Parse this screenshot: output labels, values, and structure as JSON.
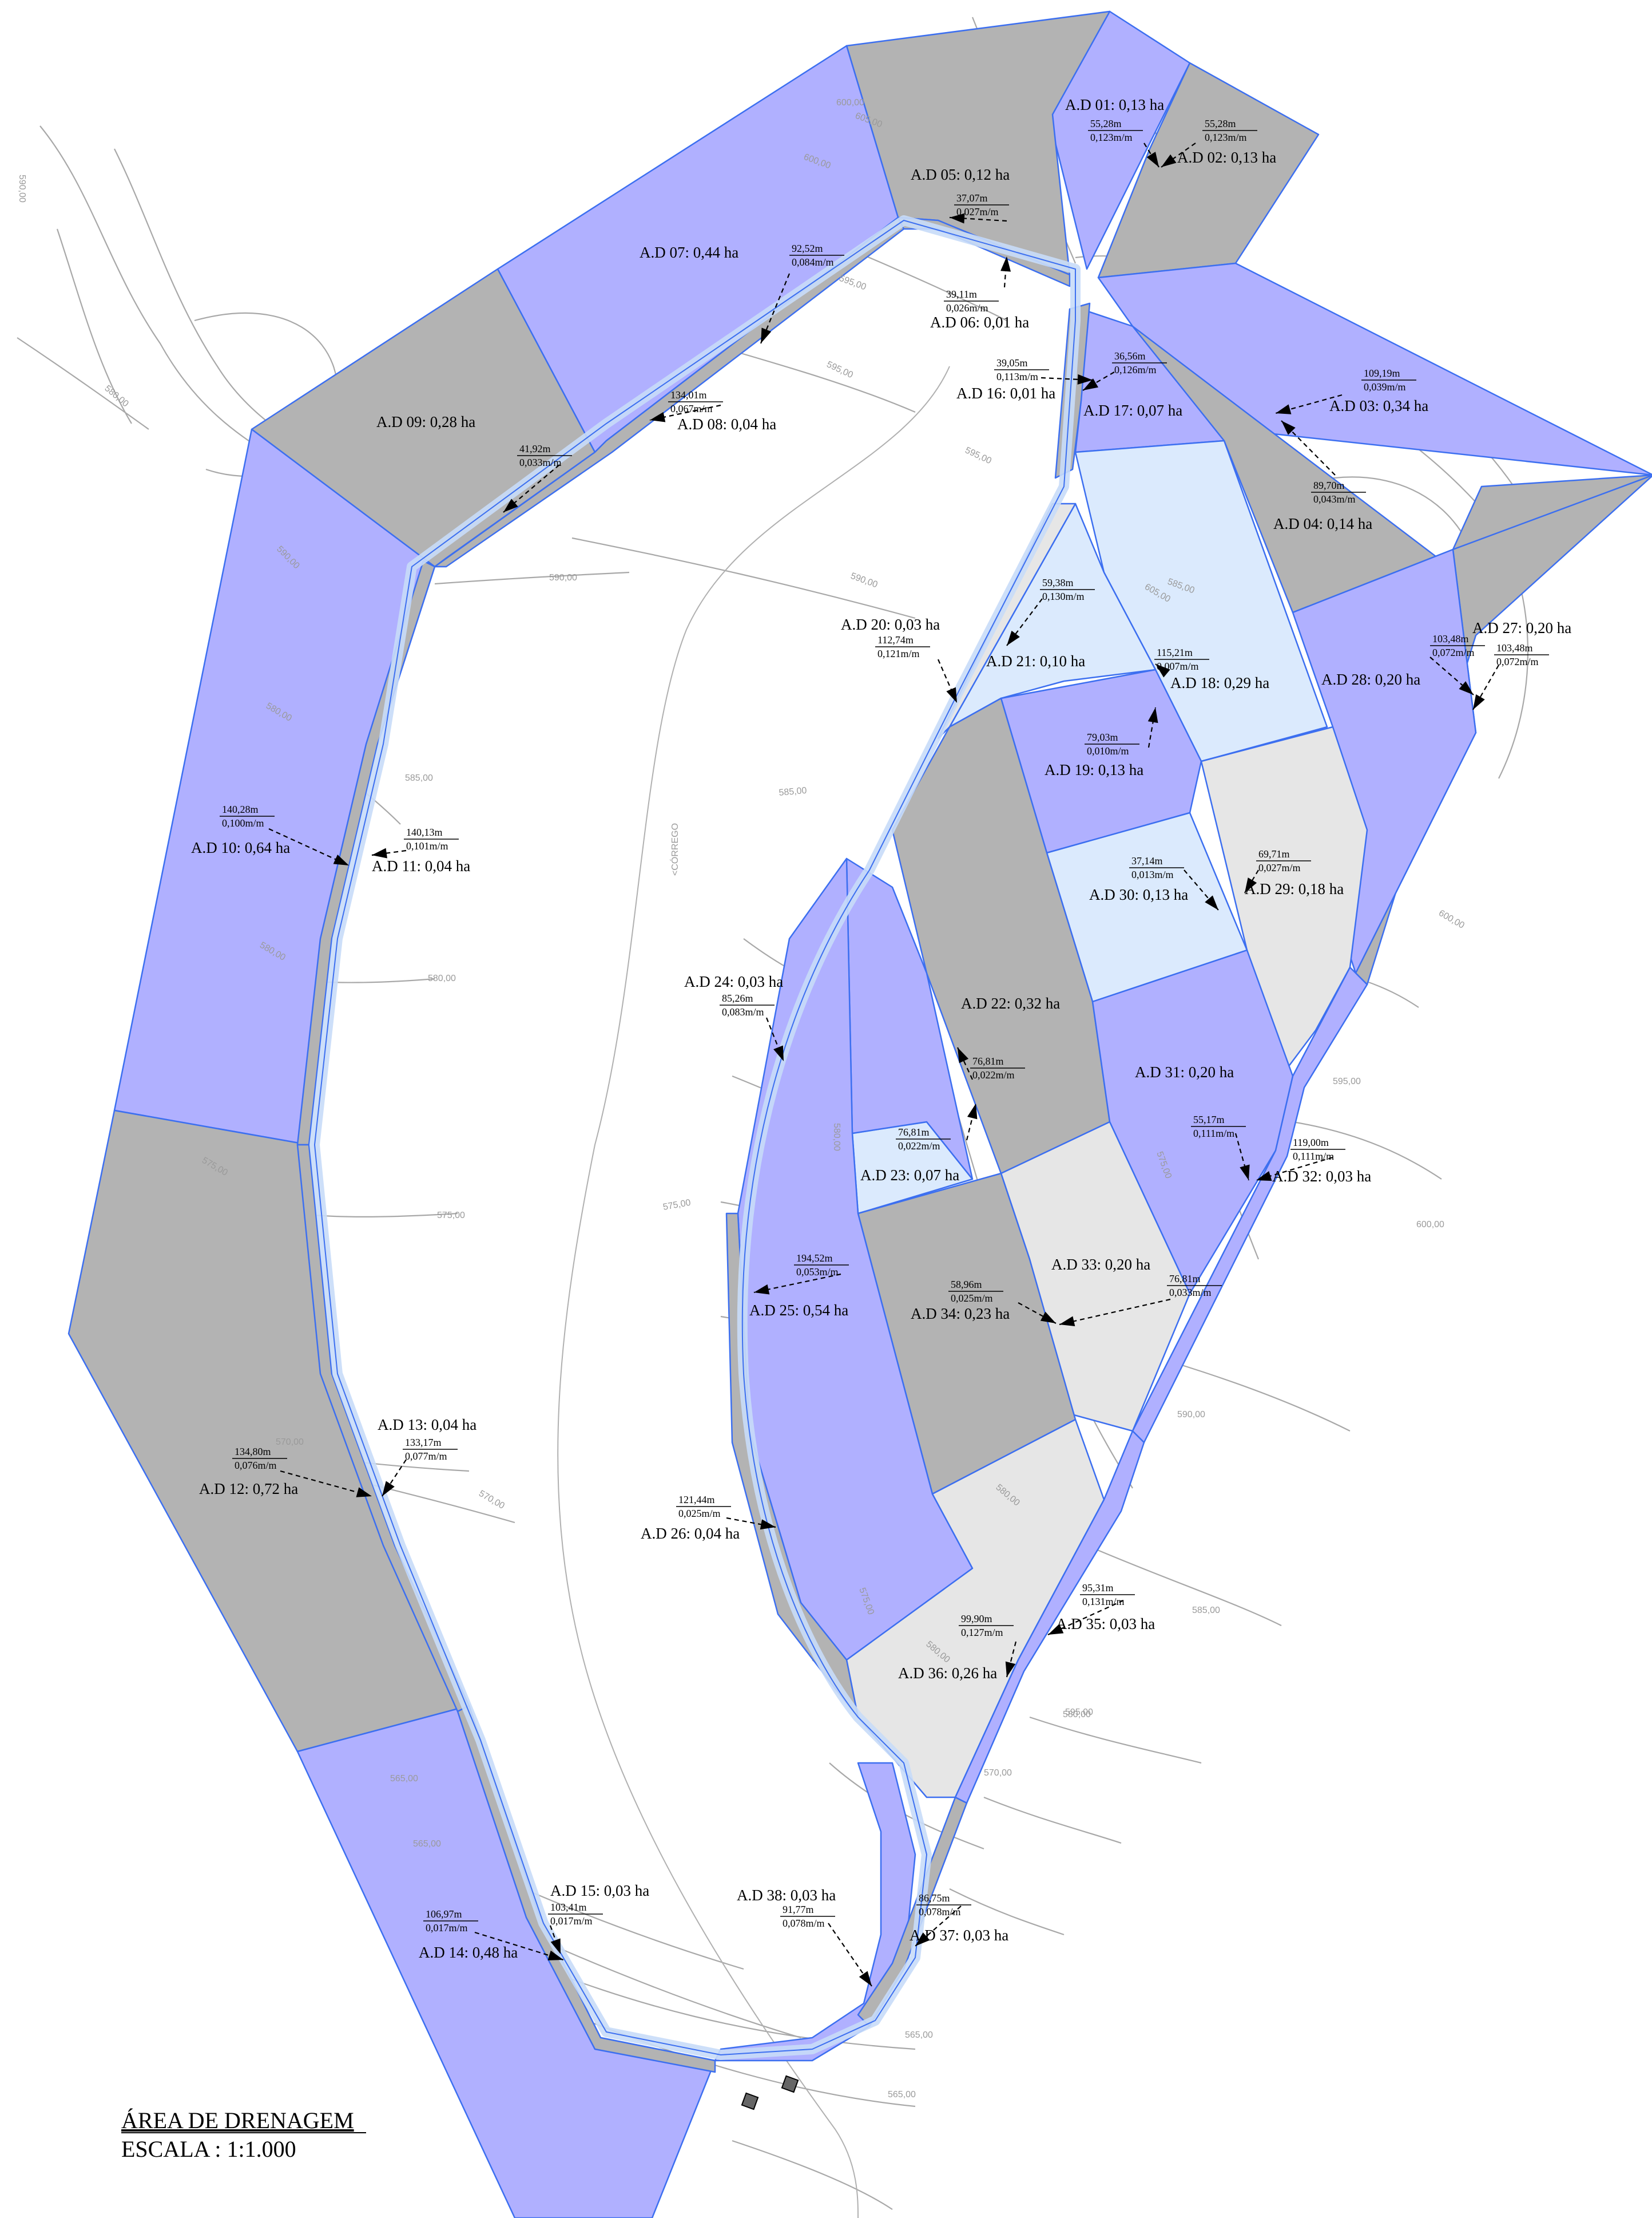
{
  "title": "ÁREA DE DRENAGEM",
  "scale": "ESCALA : 1:1.000",
  "stream_label": "<CÓRREGO",
  "colors": {
    "purple": "#b0b0ff",
    "gray": "#b3b3b3",
    "lightblue": "#dbeafd",
    "lightgray": "#e6e6e6",
    "road_blue": "#c8dcf8",
    "edge": "#3c6ff0",
    "contour": "#a8a8a8"
  },
  "areas": [
    {
      "id": "A.D 01",
      "label": "A.D  01:  0,13 ha",
      "ha": "0,13"
    },
    {
      "id": "A.D 02",
      "label": "A.D  02:  0,13 ha",
      "ha": "0,13"
    },
    {
      "id": "A.D 03",
      "label": "A.D  03:  0,34 ha",
      "ha": "0,34"
    },
    {
      "id": "A.D 04",
      "label": "A.D  04:  0,14 ha",
      "ha": "0,14"
    },
    {
      "id": "A.D 05",
      "label": "A.D  05:  0,12 ha",
      "ha": "0,12"
    },
    {
      "id": "A.D 06",
      "label": "A.D  06:  0,01 ha",
      "ha": "0,01"
    },
    {
      "id": "A.D 07",
      "label": "A.D  07:  0,44 ha",
      "ha": "0,44"
    },
    {
      "id": "A.D 08",
      "label": "A.D  08:  0,04 ha",
      "ha": "0,04"
    },
    {
      "id": "A.D 09",
      "label": "A.D  09:  0,28 ha",
      "ha": "0,28"
    },
    {
      "id": "A.D 10",
      "label": "A.D  10:  0,64 ha",
      "ha": "0,64"
    },
    {
      "id": "A.D 11",
      "label": "A.D  11:  0,04 ha",
      "ha": "0,04"
    },
    {
      "id": "A.D 12",
      "label": "A.D  12:  0,72 ha",
      "ha": "0,72"
    },
    {
      "id": "A.D 13",
      "label": "A.D  13:  0,04 ha",
      "ha": "0,04"
    },
    {
      "id": "A.D 14",
      "label": "A.D  14:  0,48 ha",
      "ha": "0,48"
    },
    {
      "id": "A.D 15",
      "label": "A.D  15:  0,03 ha",
      "ha": "0,03"
    },
    {
      "id": "A.D 16",
      "label": "A.D  16:  0,01 ha",
      "ha": "0,01"
    },
    {
      "id": "A.D 17",
      "label": "A.D  17:  0,07 ha",
      "ha": "0,07"
    },
    {
      "id": "A.D 18",
      "label": "A.D  18:  0,29 ha",
      "ha": "0,29"
    },
    {
      "id": "A.D 19",
      "label": "A.D  19:  0,13 ha",
      "ha": "0,13"
    },
    {
      "id": "A.D 20",
      "label": "A.D  20:  0,03 ha",
      "ha": "0,03"
    },
    {
      "id": "A.D 21",
      "label": "A.D 21:  0,10 ha",
      "ha": "0,10"
    },
    {
      "id": "A.D 22",
      "label": "A.D  22:  0,32 ha",
      "ha": "0,32"
    },
    {
      "id": "A.D 23",
      "label": "A.D  23:  0,07 ha",
      "ha": "0,07"
    },
    {
      "id": "A.D 24",
      "label": "A.D  24:  0,03 ha",
      "ha": "0,03"
    },
    {
      "id": "A.D 25",
      "label": "A.D  25:  0,54 ha",
      "ha": "0,54"
    },
    {
      "id": "A.D 26",
      "label": "A.D  26:  0,04 ha",
      "ha": "0,04"
    },
    {
      "id": "A.D 27",
      "label": "A.D  27:  0,20 ha",
      "ha": "0,20"
    },
    {
      "id": "A.D 28",
      "label": "A.D  28:  0,20 ha",
      "ha": "0,20"
    },
    {
      "id": "A.D 29",
      "label": "A.D  29:  0,18 ha",
      "ha": "0,18"
    },
    {
      "id": "A.D 30",
      "label": "A.D  30:  0,13 ha",
      "ha": "0,13"
    },
    {
      "id": "A.D 31",
      "label": "A.D  31:  0,20 ha",
      "ha": "0,20"
    },
    {
      "id": "A.D 32",
      "label": "A.D 32:  0,03 ha",
      "ha": "0,03"
    },
    {
      "id": "A.D 33",
      "label": "A.D  33:  0,20 ha",
      "ha": "0,20"
    },
    {
      "id": "A.D 34",
      "label": "A.D  34:  0,23 ha",
      "ha": "0,23"
    },
    {
      "id": "A.D 35",
      "label": "A.D  35:  0,03 ha",
      "ha": "0,03"
    },
    {
      "id": "A.D 36",
      "label": "A.D  36:  0,26 ha",
      "ha": "0,26"
    },
    {
      "id": "A.D 37",
      "label": "A.D  37:  0,03 ha",
      "ha": "0,03"
    },
    {
      "id": "A.D 38",
      "label": "A.D  38:  0,03 ha",
      "ha": "0,03"
    }
  ],
  "flows": [
    {
      "area": "01",
      "length": "55,28m",
      "slope": "0,123m/m"
    },
    {
      "area": "02",
      "length": "55,28m",
      "slope": "0,123m/m"
    },
    {
      "area": "03",
      "length": "109,19m",
      "slope": "0,039m/m"
    },
    {
      "area": "04",
      "length": "89,70m",
      "slope": "0,043m/m"
    },
    {
      "area": "05",
      "length": "37,07m",
      "slope": "0,027m/m"
    },
    {
      "area": "06",
      "length": "39,11m",
      "slope": "0,026m/m"
    },
    {
      "area": "07",
      "length": "92,52m",
      "slope": "0,084m/m"
    },
    {
      "area": "08",
      "length": "134,01m",
      "slope": "0,067m/m"
    },
    {
      "area": "09",
      "length": "41,92m",
      "slope": "0,033m/m"
    },
    {
      "area": "10",
      "length": "140,28m",
      "slope": "0,100m/m"
    },
    {
      "area": "11",
      "length": "140,13m",
      "slope": "0,101m/m"
    },
    {
      "area": "12",
      "length": "134,80m",
      "slope": "0,076m/m"
    },
    {
      "area": "13",
      "length": "133,17m",
      "slope": "0,077m/m"
    },
    {
      "area": "14",
      "length": "106,97m",
      "slope": "0,017m/m"
    },
    {
      "area": "15",
      "length": "103,41m",
      "slope": "0,017m/m"
    },
    {
      "area": "16",
      "length": "39,05m",
      "slope": "0,113m/m"
    },
    {
      "area": "17",
      "length": "36,56m",
      "slope": "0,126m/m"
    },
    {
      "area": "18",
      "length": "115,21m",
      "slope": "0,007m/m"
    },
    {
      "area": "19",
      "length": "79,03m",
      "slope": "0,010m/m"
    },
    {
      "area": "20",
      "length": "112,74m",
      "slope": "0,121m/m"
    },
    {
      "area": "21",
      "length": "59,38m",
      "slope": "0,130m/m"
    },
    {
      "area": "22",
      "length": "76,81m",
      "slope": "0,022m/m"
    },
    {
      "area": "23",
      "length": "76,81m",
      "slope": "0,022m/m"
    },
    {
      "area": "24",
      "length": "85,26m",
      "slope": "0,083m/m"
    },
    {
      "area": "25",
      "length": "194,52m",
      "slope": "0,053m/m"
    },
    {
      "area": "26",
      "length": "121,44m",
      "slope": "0,025m/m"
    },
    {
      "area": "27",
      "length": "103,48m",
      "slope": "0,072m/m"
    },
    {
      "area": "28",
      "length": "103,48m",
      "slope": "0,072m/m"
    },
    {
      "area": "29",
      "length": "69,71m",
      "slope": "0,027m/m"
    },
    {
      "area": "30",
      "length": "37,14m",
      "slope": "0,013m/m"
    },
    {
      "area": "31",
      "length": "55,17m",
      "slope": "0,111m/m"
    },
    {
      "area": "32",
      "length": "119,00m",
      "slope": "0,111m/m"
    },
    {
      "area": "33",
      "length": "76,81m",
      "slope": "0,033m/m"
    },
    {
      "area": "34",
      "length": "58,96m",
      "slope": "0,025m/m"
    },
    {
      "area": "35",
      "length": "95,31m",
      "slope": "0,131m/m"
    },
    {
      "area": "36",
      "length": "99,90m",
      "slope": "0,127m/m"
    },
    {
      "area": "37",
      "length": "86,75m",
      "slope": "0,078m/m"
    },
    {
      "area": "38",
      "length": "91,77m",
      "slope": "0,078m/m"
    }
  ],
  "contour_labels": [
    "590,00",
    "580,00",
    "605,00",
    "600,00",
    "595,00",
    "595,00",
    "595,00",
    "590,00",
    "590,00",
    "590,00",
    "585,00",
    "585,00",
    "585,00",
    "580,00",
    "580,00",
    "580,00",
    "575,00",
    "575,00",
    "575,00",
    "570,00",
    "570,00",
    "570,00",
    "565,00",
    "565,00",
    "565,00",
    "565,00",
    "605,00",
    "600,00",
    "600,00",
    "595,00",
    "590,00",
    "585,00",
    "580,00",
    "575,00",
    "580,00",
    "575,00",
    "580,00",
    "580,00",
    "600,00",
    "595,00"
  ]
}
